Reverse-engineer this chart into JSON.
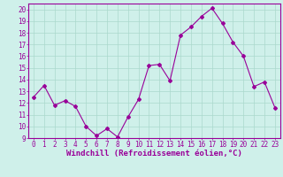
{
  "x": [
    0,
    1,
    2,
    3,
    4,
    5,
    6,
    7,
    8,
    9,
    10,
    11,
    12,
    13,
    14,
    15,
    16,
    17,
    18,
    19,
    20,
    21,
    22,
    23
  ],
  "y": [
    12.5,
    13.5,
    11.8,
    12.2,
    11.7,
    10.0,
    9.2,
    9.8,
    9.1,
    10.8,
    12.3,
    15.2,
    15.3,
    13.9,
    17.8,
    18.5,
    19.4,
    20.1,
    18.8,
    17.2,
    16.0,
    13.4,
    13.8,
    11.6
  ],
  "line_color": "#990099",
  "marker": "D",
  "marker_size": 2,
  "bg_color": "#cff0ea",
  "grid_color": "#aad8cc",
  "ylabel_ticks": [
    9,
    10,
    11,
    12,
    13,
    14,
    15,
    16,
    17,
    18,
    19,
    20
  ],
  "xlim": [
    -0.5,
    23.5
  ],
  "ylim": [
    9,
    20.5
  ],
  "xlabel": "Windchill (Refroidissement éolien,°C)",
  "xlabel_color": "#990099",
  "tick_color": "#990099",
  "label_fontsize": 6.5,
  "tick_fontsize": 5.5
}
